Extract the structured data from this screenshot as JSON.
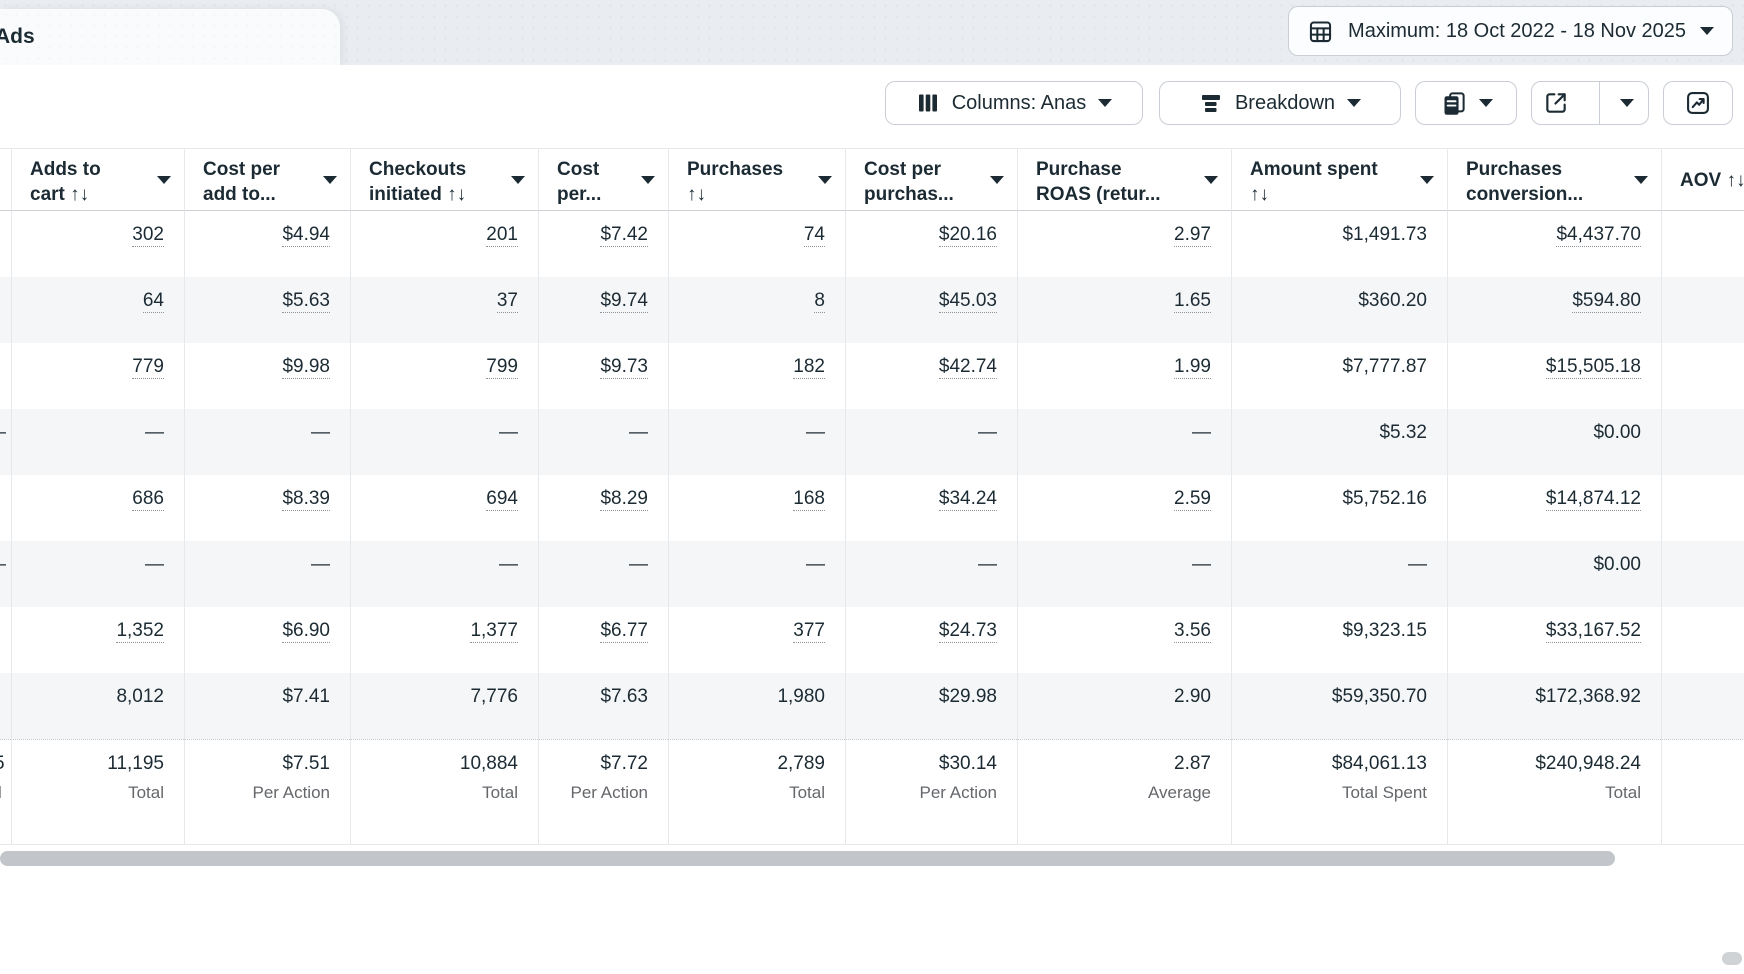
{
  "tab": {
    "label": "Ads"
  },
  "date_range": {
    "label": "Maximum: 18 Oct 2022 - 18 Nov 2025"
  },
  "toolbar": {
    "columns_label": "Columns: Anas",
    "breakdown_label": "Breakdown"
  },
  "table": {
    "columns": [
      {
        "lines": [
          "Adds to",
          "cart ↑↓"
        ]
      },
      {
        "lines": [
          "Cost per",
          "add to..."
        ]
      },
      {
        "lines": [
          "Checkouts",
          "initiated ↑↓"
        ]
      },
      {
        "lines": [
          "Cost",
          "per..."
        ]
      },
      {
        "lines": [
          "Purchases",
          "↑↓"
        ]
      },
      {
        "lines": [
          "Cost per",
          "purchas..."
        ]
      },
      {
        "lines": [
          "Purchase",
          "ROAS (retur..."
        ]
      },
      {
        "lines": [
          "Amount spent",
          "↑↓"
        ]
      },
      {
        "lines": [
          "Purchases",
          "conversion..."
        ]
      },
      {
        "lines": [
          "AOV ↑↓"
        ]
      }
    ],
    "rows": [
      {
        "linked": true,
        "cells": [
          "302",
          "$4.94",
          "201",
          "$7.42",
          "74",
          "$20.16",
          "2.97",
          "$1,491.73",
          "$4,437.70",
          ""
        ]
      },
      {
        "linked": true,
        "cells": [
          "64",
          "$5.63",
          "37",
          "$9.74",
          "8",
          "$45.03",
          "1.65",
          "$360.20",
          "$594.80",
          ""
        ]
      },
      {
        "linked": true,
        "cells": [
          "779",
          "$9.98",
          "799",
          "$9.73",
          "182",
          "$42.74",
          "1.99",
          "$7,777.87",
          "$15,505.18",
          ""
        ]
      },
      {
        "linked": false,
        "cells": [
          "—",
          "—",
          "—",
          "—",
          "—",
          "—",
          "—",
          "$5.32",
          "$0.00",
          ""
        ]
      },
      {
        "linked": true,
        "cells": [
          "686",
          "$8.39",
          "694",
          "$8.29",
          "168",
          "$34.24",
          "2.59",
          "$5,752.16",
          "$14,874.12",
          ""
        ]
      },
      {
        "linked": false,
        "cells": [
          "—",
          "—",
          "—",
          "—",
          "—",
          "—",
          "—",
          "—",
          "$0.00",
          ""
        ]
      },
      {
        "linked": true,
        "cells": [
          "1,352",
          "$6.90",
          "1,377",
          "$6.77",
          "377",
          "$24.73",
          "3.56",
          "$9,323.15",
          "$33,167.52",
          ""
        ]
      },
      {
        "linked": false,
        "cells": [
          "8,012",
          "$7.41",
          "7,776",
          "$7.63",
          "1,980",
          "$29.98",
          "2.90",
          "$59,350.70",
          "$172,368.92",
          ""
        ]
      }
    ],
    "totals": {
      "cells": [
        {
          "value": "11,195",
          "label": "Total"
        },
        {
          "value": "$7.51",
          "label": "Per Action"
        },
        {
          "value": "10,884",
          "label": "Total"
        },
        {
          "value": "$7.72",
          "label": "Per Action"
        },
        {
          "value": "2,789",
          "label": "Total"
        },
        {
          "value": "$30.14",
          "label": "Per Action"
        },
        {
          "value": "2.87",
          "label": "Average"
        },
        {
          "value": "$84,061.13",
          "label": "Total Spent"
        },
        {
          "value": "$240,948.24",
          "label": "Total"
        },
        {
          "value": "",
          "label": ""
        }
      ]
    },
    "clipped_left_column": {
      "rows": [
        "",
        "",
        "",
        "—",
        "",
        "—",
        "",
        ""
      ],
      "total_value": "5",
      "total_label": "l"
    }
  },
  "colors": {
    "text": "#1c2b33",
    "row_stripe": "#f5f6f8",
    "tab_band": "#e9edf1",
    "scrollbar": "#c2c6ca"
  }
}
